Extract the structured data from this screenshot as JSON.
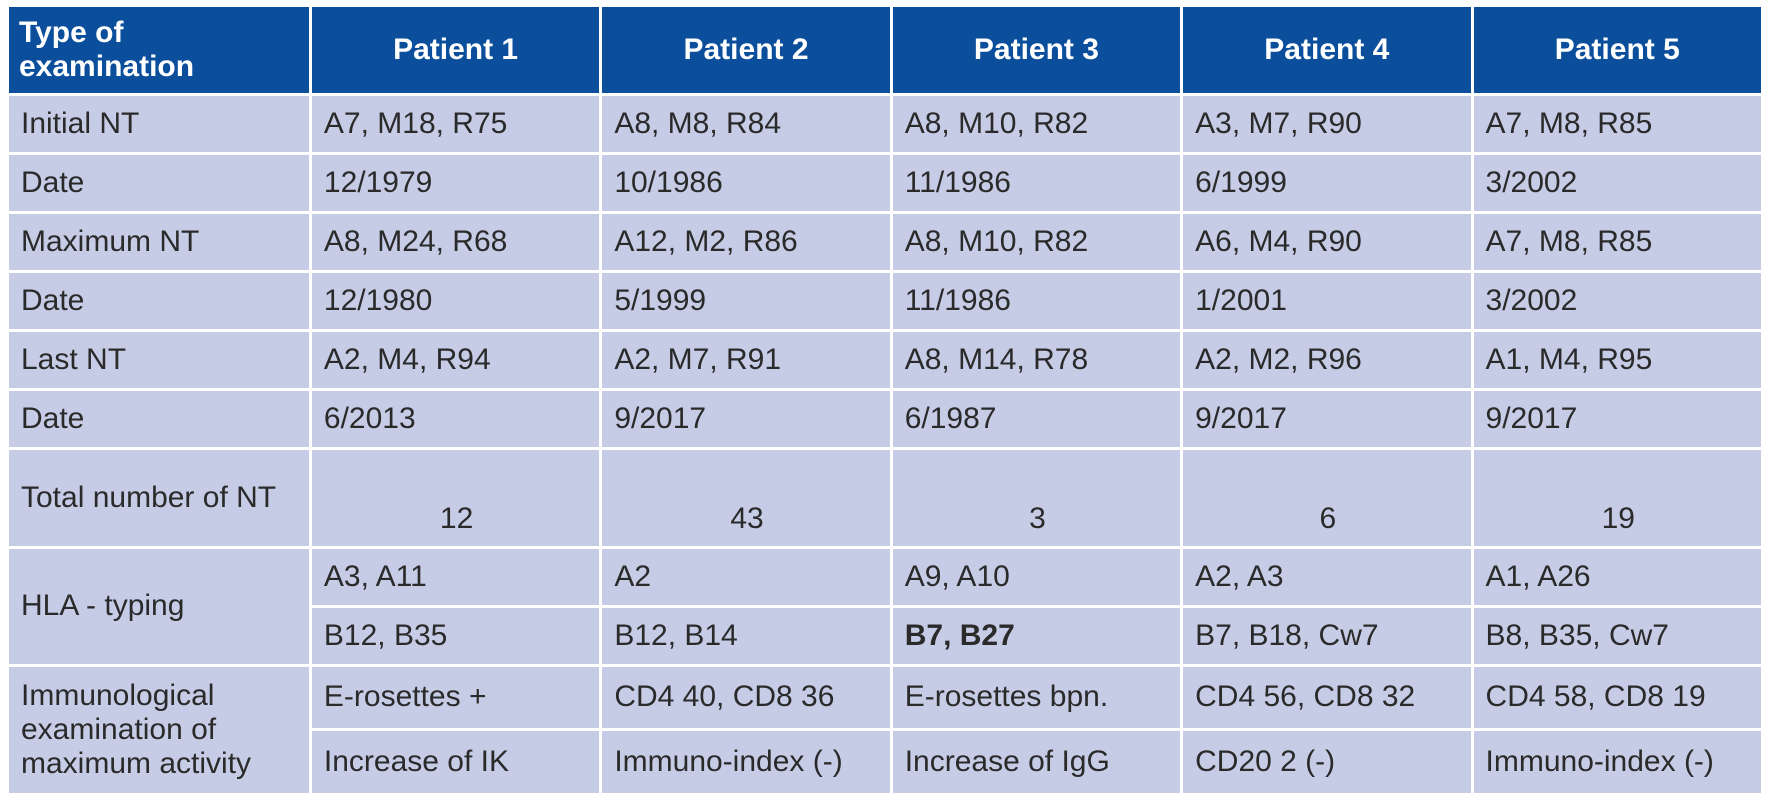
{
  "header": {
    "type_label": "Type of examination",
    "patients": [
      "Patient 1",
      "Patient 2",
      "Patient 3",
      "Patient 4",
      "Patient 5"
    ]
  },
  "rows": [
    {
      "label": "Initial NT",
      "values": [
        "A7, M18, R75",
        "A8, M8, R84",
        "A8, M10, R82",
        "A3, M7, R90",
        "A7, M8, R85"
      ]
    },
    {
      "label": "Date",
      "values": [
        "12/1979",
        "10/1986",
        "11/1986",
        "6/1999",
        "3/2002"
      ]
    },
    {
      "label": "Maximum NT",
      "values": [
        "A8, M24, R68",
        "A12, M2, R86",
        "A8, M10, R82",
        "A6, M4, R90",
        "A7, M8, R85"
      ]
    },
    {
      "label": "Date",
      "values": [
        "12/1980",
        "5/1999",
        "11/1986",
        "1/2001",
        "3/2002"
      ]
    },
    {
      "label": "Last NT",
      "values": [
        "A2, M4, R94",
        "A2, M7, R91",
        "A8, M14, R78",
        "A2, M2, R96",
        "A1, M4, R95"
      ]
    },
    {
      "label": "Date",
      "values": [
        "6/2013",
        "9/2017",
        "6/1987",
        "9/2017",
        "9/2017"
      ]
    }
  ],
  "total": {
    "label": "Total number of NT",
    "values": [
      "12",
      "43",
      "3",
      "6",
      "19"
    ]
  },
  "hla": {
    "label": "HLA - typing",
    "a_values": [
      "A3, A11",
      "A2",
      "A9, A10",
      "A2, A3",
      "A1, A26"
    ],
    "b_values": [
      "B12, B35",
      "B12, B14",
      "B7, B27",
      "B7, B18, Cw7",
      "B8, B35, Cw7"
    ]
  },
  "immuno": {
    "label": "Immunological examination of maximum activity",
    "line1": [
      "E-rosettes +",
      "CD4 40, CD8 36",
      "E-rosettes bpn.",
      "CD4 56, CD8 32",
      "CD4 58, CD8 19"
    ],
    "line2": [
      "Increase of IK",
      "Immuno-index (-)",
      "Increase of IgG",
      "CD20 2 (-)",
      "Immuno-index (-)"
    ]
  },
  "colors": {
    "header_bg": "#0b4f9c",
    "cell_bg": "#c6cce6",
    "header_text": "#ffffff"
  }
}
